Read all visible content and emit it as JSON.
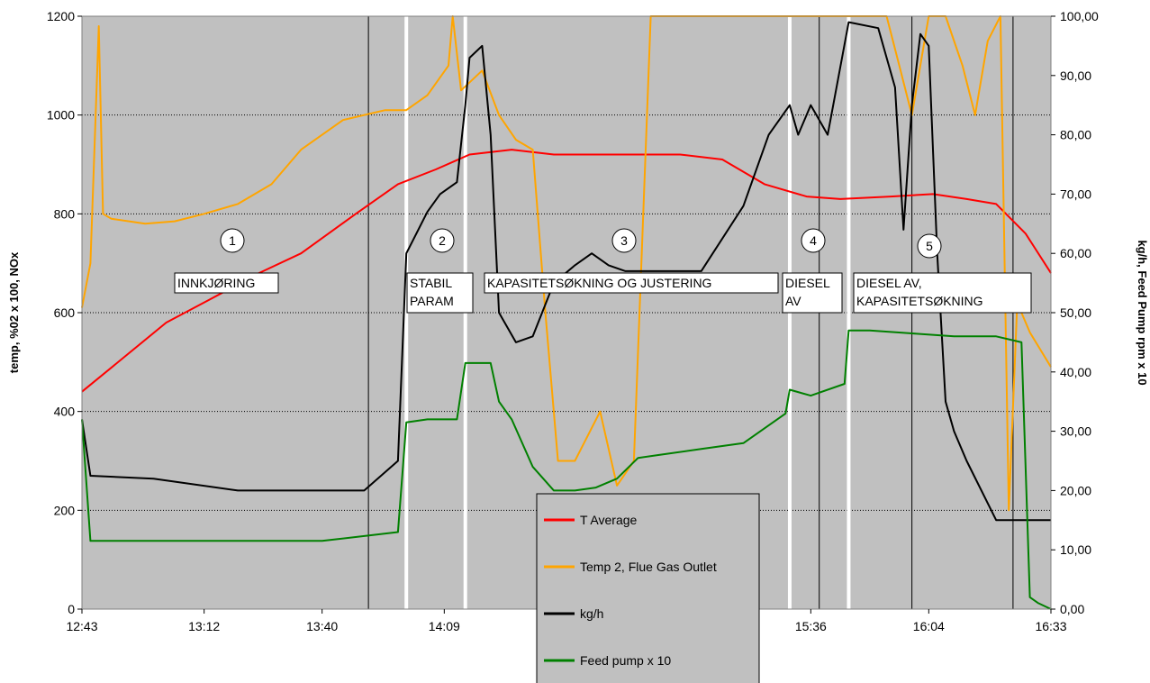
{
  "chart_data": {
    "type": "line",
    "ylabel_left": "temp, %02 x 100, NOx",
    "ylabel_right": "kg/h, Feed Pump rpm x 10",
    "ylim_left": [
      0,
      1200
    ],
    "ylim_right": [
      0,
      100
    ],
    "x_tick_labels": [
      "12:43",
      "13:12",
      "13:40",
      "14:09",
      "15:36",
      "16:04",
      "16:33"
    ],
    "y_left_ticks": [
      "0",
      "200",
      "400",
      "600",
      "800",
      "1000",
      "1200"
    ],
    "y_right_ticks": [
      "0,00",
      "10,00",
      "20,00",
      "30,00",
      "40,00",
      "50,00",
      "60,00",
      "70,00",
      "80,00",
      "90,00",
      "100,00"
    ],
    "grid": "horizontal dotted",
    "legend_position": "bottom-center",
    "phases": [
      {
        "number": "1",
        "label": [
          "INNKJØRING"
        ]
      },
      {
        "number": "2",
        "label": [
          "STABIL",
          "PARAM"
        ]
      },
      {
        "number": "3",
        "label": [
          "KAPASITETSØKNING OG JUSTERING"
        ]
      },
      {
        "number": "4",
        "label": [
          "DIESEL",
          "AV"
        ]
      },
      {
        "number": "5",
        "label": [
          "DIESEL AV,",
          "KAPASITETSØKNING"
        ]
      }
    ],
    "phase_boundaries_white": [
      "14:00",
      "14:14",
      "15:31",
      "15:45"
    ],
    "event_lines_black": [
      "13:51",
      "15:38",
      "16:00",
      "16:24"
    ],
    "series": [
      {
        "name": "T Average",
        "color": "#ff0000",
        "axis": "left",
        "x": [
          "12:43",
          "12:53",
          "13:03",
          "13:13",
          "13:25",
          "13:35",
          "13:48",
          "13:58",
          "14:07",
          "14:15",
          "14:25",
          "14:35",
          "14:50",
          "15:05",
          "15:15",
          "15:25",
          "15:35",
          "15:43",
          "15:55",
          "16:05",
          "16:13",
          "16:20",
          "16:27",
          "16:33"
        ],
        "values": [
          440,
          510,
          580,
          625,
          680,
          720,
          800,
          860,
          890,
          920,
          930,
          920,
          920,
          920,
          910,
          860,
          835,
          830,
          835,
          840,
          830,
          820,
          760,
          680
        ]
      },
      {
        "name": "Temp 2, Flue Gas Outlet",
        "color": "#ffa500",
        "axis": "left",
        "x": [
          "12:43",
          "12:45",
          "12:47",
          "12:48",
          "12:50",
          "12:58",
          "13:05",
          "13:12",
          "13:20",
          "13:28",
          "13:35",
          "13:45",
          "13:55",
          "14:00",
          "14:05",
          "14:10",
          "14:11",
          "14:13",
          "14:18",
          "14:22",
          "14:26",
          "14:30",
          "14:33",
          "14:36",
          "14:40",
          "14:46",
          "14:50",
          "14:54",
          "14:58",
          "15:02",
          "15:06",
          "15:10",
          "15:14",
          "15:18",
          "15:22",
          "15:26",
          "15:30",
          "15:36",
          "15:44",
          "15:50",
          "15:54",
          "15:57",
          "16:00",
          "16:04",
          "16:08",
          "16:12",
          "16:15",
          "16:18",
          "16:21",
          "16:23",
          "16:25",
          "16:28",
          "16:33"
        ],
        "values": [
          610,
          700,
          1180,
          800,
          790,
          780,
          785,
          800,
          820,
          860,
          930,
          990,
          1010,
          1010,
          1040,
          1100,
          1200,
          1050,
          1090,
          1000,
          950,
          930,
          600,
          300,
          300,
          400,
          250,
          300,
          1200,
          1200,
          1200,
          1200,
          1200,
          1200,
          1200,
          1200,
          1200,
          1200,
          1200,
          1200,
          1200,
          1100,
          1000,
          1200,
          1200,
          1100,
          1000,
          1150,
          1200,
          200,
          620,
          560,
          490
        ]
      },
      {
        "name": "kg/h",
        "color": "#000000",
        "axis": "right",
        "x": [
          "12:43",
          "12:45",
          "13:00",
          "13:20",
          "13:30",
          "13:40",
          "13:50",
          "13:58",
          "14:00",
          "14:05",
          "14:08",
          "14:12",
          "14:14",
          "14:15",
          "14:18",
          "14:20",
          "14:22",
          "14:26",
          "14:30",
          "14:35",
          "14:40",
          "14:44",
          "14:48",
          "14:52",
          "15:00",
          "15:10",
          "15:20",
          "15:26",
          "15:31",
          "15:33",
          "15:36",
          "15:40",
          "15:45",
          "15:52",
          "15:56",
          "15:58",
          "16:00",
          "16:02",
          "16:04",
          "16:06",
          "16:08",
          "16:10",
          "16:13",
          "16:20",
          "16:33"
        ],
        "values": [
          32,
          22.5,
          22,
          20,
          20,
          20,
          20,
          25,
          60,
          67,
          70,
          72,
          85,
          93,
          95,
          80,
          50,
          45,
          46,
          55,
          58,
          60,
          58,
          57,
          57,
          57,
          68,
          80,
          85,
          80,
          85,
          80,
          99,
          98,
          88,
          64,
          85,
          97,
          95,
          60,
          35,
          30,
          25,
          15,
          15
        ]
      },
      {
        "name": "Feed pump x 10",
        "color": "#008000",
        "axis": "right",
        "x": [
          "12:43",
          "12:45",
          "13:00",
          "13:20",
          "13:40",
          "13:58",
          "14:00",
          "14:05",
          "14:12",
          "14:14",
          "14:20",
          "14:22",
          "14:25",
          "14:30",
          "14:35",
          "14:40",
          "14:45",
          "14:50",
          "14:55",
          "15:00",
          "15:10",
          "15:20",
          "15:30",
          "15:31",
          "15:36",
          "15:44",
          "15:45",
          "15:50",
          "16:00",
          "16:10",
          "16:20",
          "16:26",
          "16:28",
          "16:30",
          "16:33"
        ],
        "values": [
          32,
          11.5,
          11.5,
          11.5,
          11.5,
          13,
          31.5,
          32,
          32,
          41.5,
          41.5,
          35,
          32,
          24,
          20,
          20,
          20.5,
          22,
          25.5,
          26,
          27,
          28,
          33,
          37,
          36,
          38,
          47,
          47,
          46.5,
          46,
          46,
          45,
          2,
          1,
          0
        ]
      }
    ]
  }
}
